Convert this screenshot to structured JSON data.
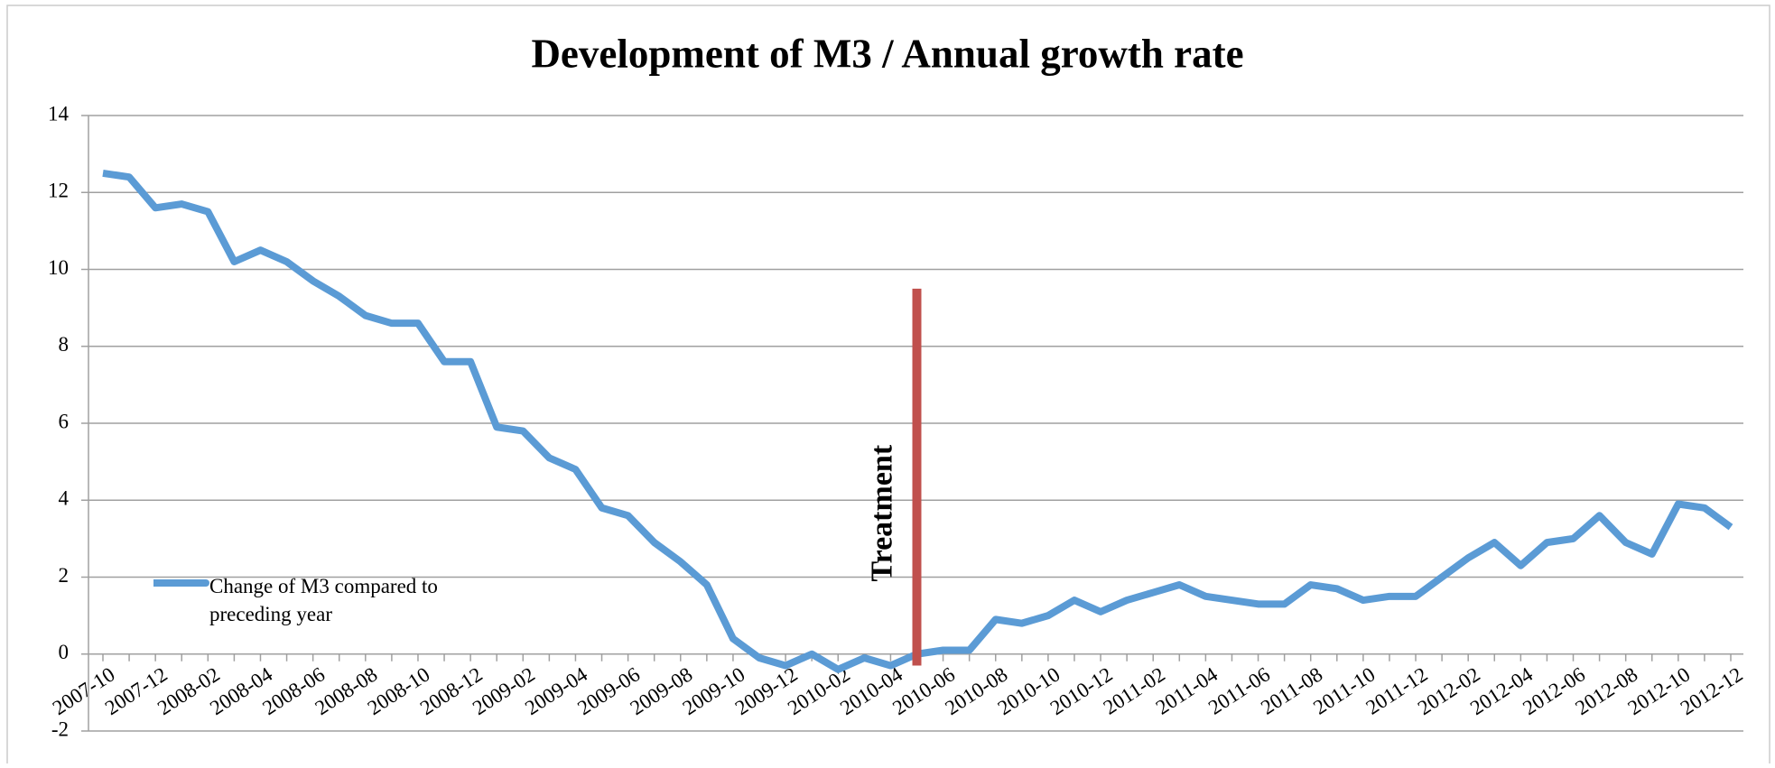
{
  "chart_data": {
    "type": "line",
    "title": "Development of M3  / Annual growth rate",
    "categories": [
      "2007-10",
      null,
      "2007-12",
      null,
      "2008-02",
      null,
      "2008-04",
      null,
      "2008-06",
      null,
      "2008-08",
      null,
      "2008-10",
      null,
      "2008-12",
      null,
      "2009-02",
      null,
      "2009-04",
      null,
      "2009-06",
      null,
      "2009-08",
      null,
      "2009-10",
      null,
      "2009-12",
      null,
      "2010-02",
      null,
      "2010-04",
      null,
      "2010-06",
      null,
      "2010-08",
      null,
      "2010-10",
      null,
      "2010-12",
      null,
      "2011-02",
      null,
      "2011-04",
      null,
      "2011-06",
      null,
      "2011-08",
      null,
      "2011-10",
      null,
      "2011-12",
      null,
      "2012-02",
      null,
      "2012-04",
      null,
      "2012-06",
      null,
      "2012-08",
      null,
      "2012-10",
      null,
      "2012-12"
    ],
    "series": [
      {
        "name": "Change of M3 compared to preceding year",
        "color": "#5b9bd5",
        "values": [
          12.5,
          12.4,
          11.6,
          11.7,
          11.5,
          10.2,
          10.5,
          10.2,
          9.7,
          9.3,
          8.8,
          8.6,
          8.6,
          7.6,
          7.6,
          5.9,
          5.8,
          5.1,
          4.8,
          3.8,
          3.6,
          2.9,
          2.4,
          1.8,
          0.4,
          -0.1,
          -0.3,
          0.0,
          -0.4,
          -0.1,
          -0.3,
          0.0,
          0.1,
          0.1,
          0.9,
          0.8,
          1.0,
          1.4,
          1.1,
          1.4,
          1.6,
          1.8,
          1.5,
          1.4,
          1.3,
          1.3,
          1.8,
          1.7,
          1.4,
          1.5,
          1.5,
          2.0,
          2.5,
          2.9,
          2.3,
          2.9,
          3.0,
          3.6,
          2.9,
          2.6,
          3.9,
          3.8,
          3.3
        ]
      }
    ],
    "ylim": [
      -2,
      14
    ],
    "yticks": [
      -2,
      0,
      2,
      4,
      6,
      8,
      10,
      12,
      14
    ],
    "grid": true,
    "legend": "lower left",
    "annotation": {
      "text": "Treatment",
      "color": "#c0504d",
      "x": 31,
      "y": [
        -0.3,
        9.5
      ]
    }
  }
}
